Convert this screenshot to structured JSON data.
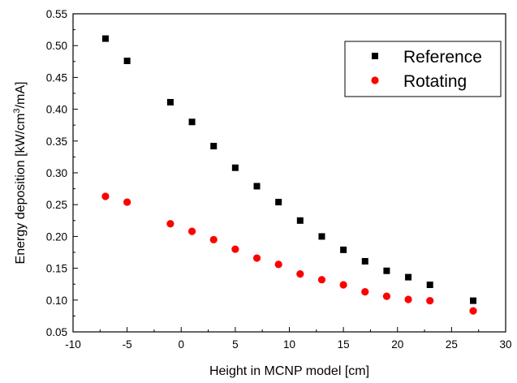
{
  "chart_data": {
    "type": "scatter",
    "title": "",
    "xlabel": "Height in MCNP model [cm]",
    "ylabel_parts": {
      "main": "Energy deposition [kW/cm",
      "sup": "3",
      "tail": "/mA]"
    },
    "xlim": [
      -10,
      30
    ],
    "ylim": [
      0.05,
      0.55
    ],
    "xticks": [
      -10,
      -5,
      0,
      5,
      10,
      15,
      20,
      25,
      30
    ],
    "yticks": [
      0.05,
      0.1,
      0.15,
      0.2,
      0.25,
      0.3,
      0.35,
      0.4,
      0.45,
      0.5,
      0.55
    ],
    "xtick_labels": [
      "-10",
      "-5",
      "0",
      "5",
      "10",
      "15",
      "20",
      "25",
      "30"
    ],
    "ytick_labels": [
      "0.05",
      "0.10",
      "0.15",
      "0.20",
      "0.25",
      "0.30",
      "0.35",
      "0.40",
      "0.45",
      "0.50",
      "0.55"
    ],
    "grid": false,
    "legend": {
      "placement": "top-right",
      "entries": [
        "Reference",
        "Rotating"
      ]
    },
    "series": [
      {
        "name": "Reference",
        "marker": "square",
        "color": "#000000",
        "x": [
          -7,
          -5,
          -1,
          1,
          3,
          5,
          7,
          9,
          11,
          13,
          15,
          17,
          19,
          21,
          23,
          27
        ],
        "y": [
          0.511,
          0.476,
          0.411,
          0.38,
          0.342,
          0.308,
          0.279,
          0.254,
          0.225,
          0.2,
          0.179,
          0.161,
          0.146,
          0.136,
          0.124,
          0.099
        ]
      },
      {
        "name": "Rotating",
        "marker": "circle",
        "color": "#ff0000",
        "x": [
          -7,
          -5,
          -1,
          1,
          3,
          5,
          7,
          9,
          11,
          13,
          15,
          17,
          19,
          21,
          23,
          27
        ],
        "y": [
          0.263,
          0.254,
          0.22,
          0.208,
          0.195,
          0.18,
          0.166,
          0.156,
          0.141,
          0.132,
          0.124,
          0.113,
          0.106,
          0.101,
          0.099,
          0.083
        ]
      }
    ]
  }
}
